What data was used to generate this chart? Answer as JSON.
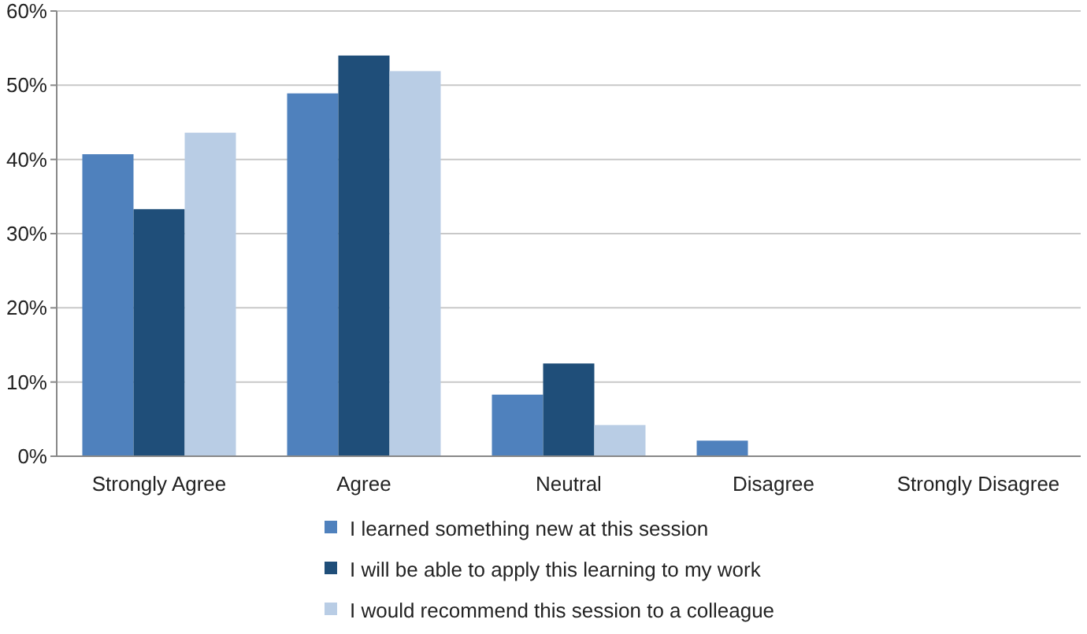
{
  "chart_data": {
    "type": "bar",
    "categories": [
      "Strongly Agree",
      "Agree",
      "Neutral",
      "Disagree",
      "Strongly Disagree"
    ],
    "series": [
      {
        "name": "I learned something new at this session",
        "color": "#4f81bd",
        "values": [
          40.7,
          48.9,
          8.3,
          2.1,
          0
        ]
      },
      {
        "name": "I will be able to apply this learning to my work",
        "color": "#1f4e79",
        "values": [
          33.3,
          54.0,
          12.5,
          0,
          0
        ]
      },
      {
        "name": "I would recommend this session to a colleague",
        "color": "#b9cde5",
        "values": [
          43.6,
          51.9,
          4.2,
          0,
          0
        ]
      }
    ],
    "ylim": [
      0,
      60
    ],
    "yticks": [
      {
        "value": 0,
        "label": "0%"
      },
      {
        "value": 10,
        "label": "10%"
      },
      {
        "value": 20,
        "label": "20%"
      },
      {
        "value": 30,
        "label": "30%"
      },
      {
        "value": 40,
        "label": "40%"
      },
      {
        "value": 50,
        "label": "50%"
      },
      {
        "value": 60,
        "label": "60%"
      }
    ],
    "grid": "y",
    "legend": "bottom"
  }
}
